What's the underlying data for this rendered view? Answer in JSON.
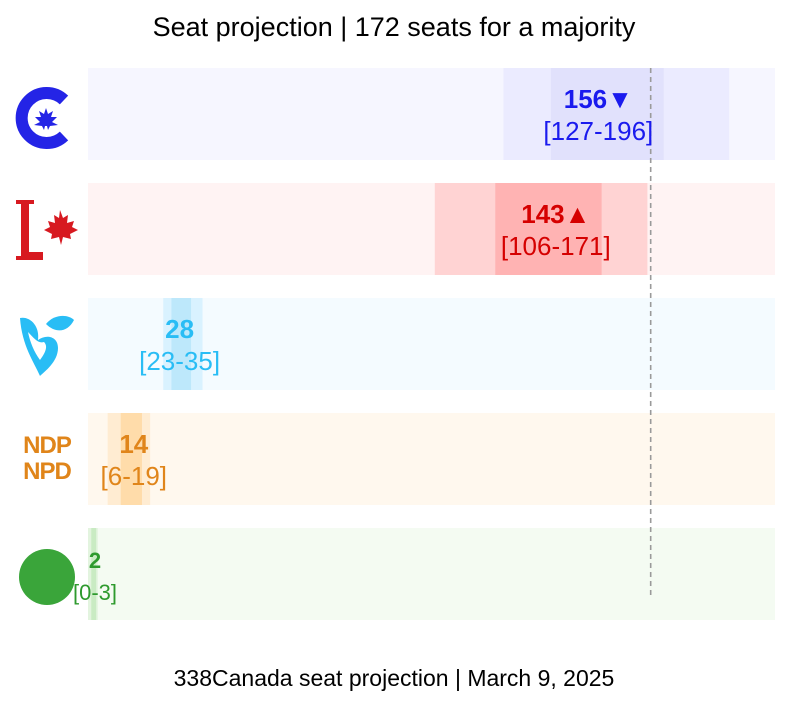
{
  "title": "Seat projection | 172 seats for a majority",
  "footer": "338Canada seat projection | March 9, 2025",
  "chart_data": {
    "type": "bar",
    "title": "Seat projection | 172 seats for a majority",
    "majority_line": 172,
    "xlim": [
      0,
      210
    ],
    "grid": false,
    "series": [
      {
        "party_logo": "conservative-logo",
        "value": 156,
        "low": 127,
        "high": 196,
        "trend": "down",
        "trend_symbol": "▼",
        "value_text": "156",
        "range_text": "[127-196]",
        "color": "#1a1aee",
        "lane_color": "#f6f6ff",
        "outer_color": "#ebebff",
        "inner_color": "#e1e1fc"
      },
      {
        "party_logo": "liberal-logo",
        "value": 143,
        "low": 106,
        "high": 171,
        "trend": "up",
        "trend_symbol": "▲",
        "value_text": "143",
        "range_text": "[106-171]",
        "color": "#d50000",
        "lane_color": "#fff3f3",
        "outer_color": "#ffd3d3",
        "inner_color": "#ffb3b3"
      },
      {
        "party_logo": "bloc-logo",
        "value": 28,
        "low": 23,
        "high": 35,
        "trend": "",
        "trend_symbol": "",
        "value_text": "28",
        "range_text": "[23-35]",
        "color": "#29bdf5",
        "lane_color": "#f4fbff",
        "outer_color": "#d9f2ff",
        "inner_color": "#bde8fb"
      },
      {
        "party_logo": "ndp-logo",
        "value": 14,
        "low": 6,
        "high": 19,
        "trend": "",
        "trend_symbol": "",
        "value_text": "14",
        "range_text": "[6-19]",
        "color": "#e0851a",
        "lane_color": "#fff8ee",
        "outer_color": "#ffecd2",
        "inner_color": "#ffdcaa"
      },
      {
        "party_logo": "green-logo",
        "value": 2,
        "low": 0,
        "high": 3,
        "trend": "",
        "trend_symbol": "",
        "value_text": "2",
        "range_text": "[0-3]",
        "color": "#2e9a2e",
        "lane_color": "#f4fbf2",
        "outer_color": "#e3f4df",
        "inner_color": "#c9ebc3"
      }
    ],
    "logos": {
      "ndp_line1": "NDP",
      "ndp_line2": "NPD"
    }
  }
}
